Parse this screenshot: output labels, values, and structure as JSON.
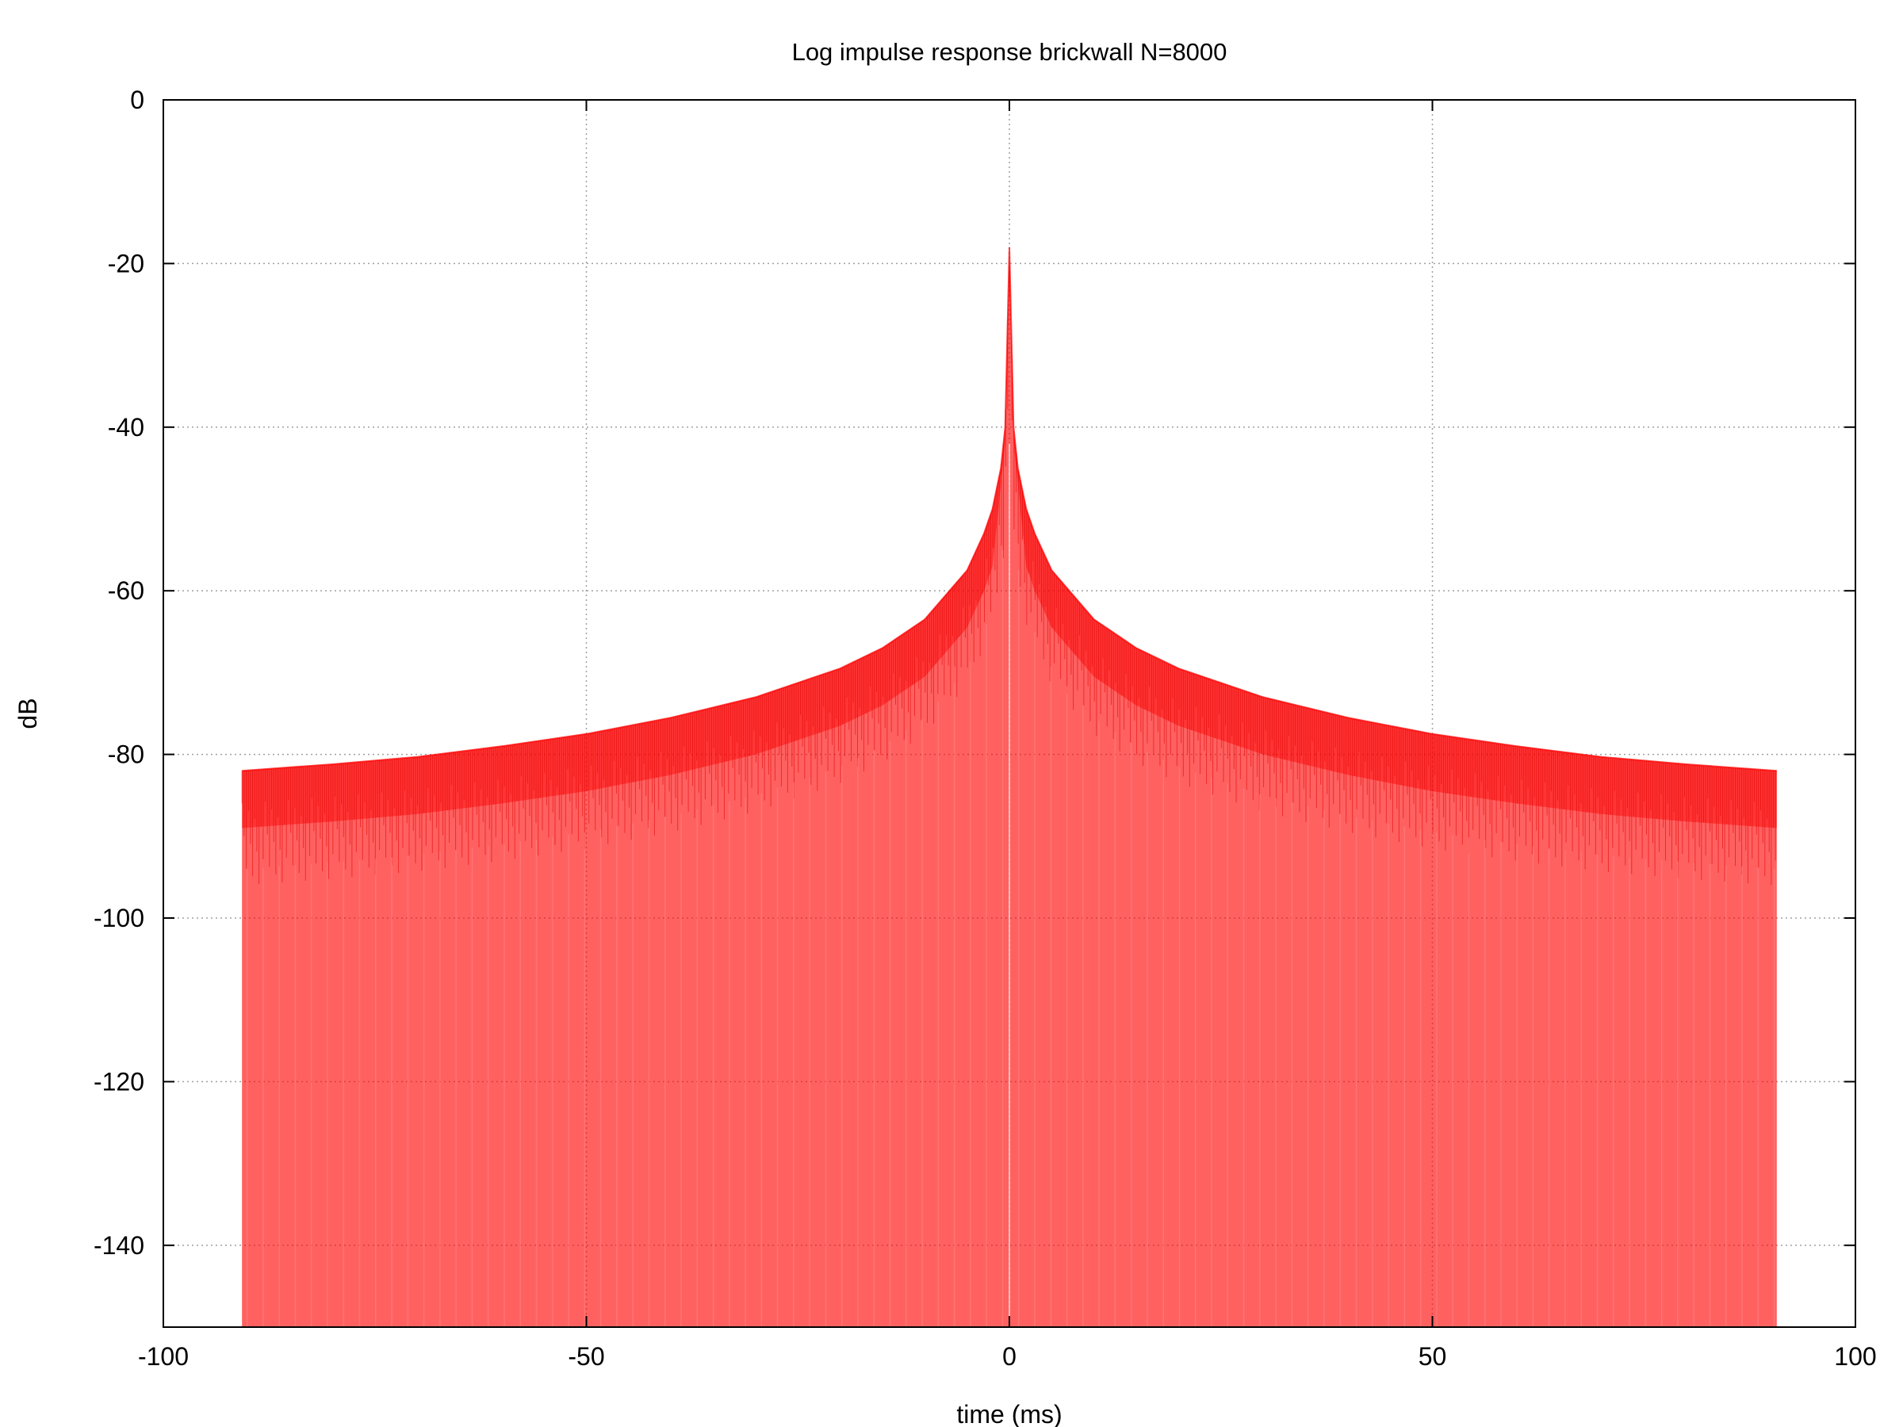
{
  "chart_data": {
    "type": "area",
    "title": "Log impulse response brickwall N=8000",
    "xlabel": "time (ms)",
    "ylabel": "dB",
    "xlim": [
      -100,
      100
    ],
    "ylim": [
      -150,
      0
    ],
    "x_ticks": [
      -100,
      -50,
      0,
      50,
      100
    ],
    "y_ticks": [
      0,
      -20,
      -40,
      -60,
      -80,
      -100,
      -120,
      -140
    ],
    "x_tick_labels": [
      "-100",
      "-50",
      "0",
      "50",
      "100"
    ],
    "y_tick_labels": [
      "0",
      "-20",
      "-40",
      "-60",
      "-80",
      "-100",
      "-120",
      "-140"
    ],
    "grid": true,
    "legend": "none",
    "series": [
      {
        "color": "#ff0000",
        "x_range": [
          -90.7,
          90.7
        ],
        "envelope": {
          "x": [
            -90.7,
            -80,
            -70,
            -60,
            -50,
            -40,
            -30,
            -20,
            -15,
            -10,
            -5,
            -3,
            -2,
            -1,
            -0.5,
            0,
            0.5,
            1,
            2,
            3,
            5,
            10,
            15,
            20,
            30,
            40,
            50,
            60,
            70,
            80,
            90.7
          ],
          "y": [
            -82,
            -81.2,
            -80.3,
            -79,
            -77.5,
            -75.5,
            -73,
            -69.5,
            -67,
            -63.5,
            -57.5,
            -53,
            -50,
            -45,
            -40,
            -18,
            -40,
            -45,
            -50,
            -53,
            -57.5,
            -63.5,
            -67,
            -69.5,
            -73,
            -75.5,
            -77.5,
            -79,
            -80.3,
            -81.2,
            -82
          ]
        },
        "dense_band_depth_db": 7,
        "floor_db": -150
      }
    ]
  }
}
